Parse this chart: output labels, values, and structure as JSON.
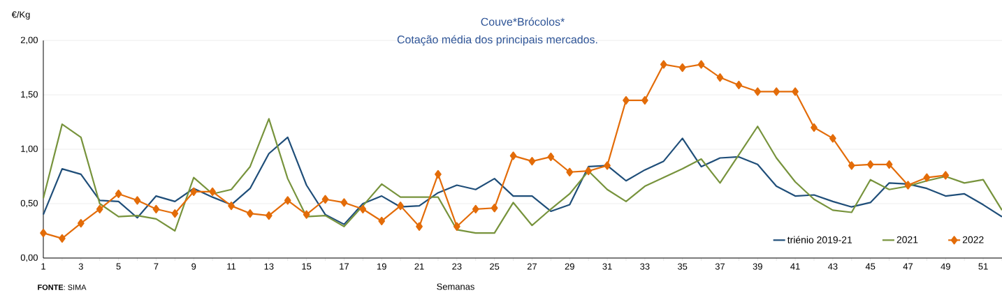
{
  "chart_data": {
    "type": "line",
    "title": "Couve*Brócolos*",
    "subtitle": "Cotação média dos principais mercados.",
    "xlabel": "Semanas",
    "ylabel": "€/Kg",
    "annotations": [
      "**FONTE**: SIMA"
    ],
    "x": [
      1,
      2,
      3,
      4,
      5,
      6,
      7,
      8,
      9,
      10,
      11,
      12,
      13,
      14,
      15,
      16,
      17,
      18,
      19,
      20,
      21,
      22,
      23,
      24,
      25,
      26,
      27,
      28,
      29,
      30,
      31,
      32,
      33,
      34,
      35,
      36,
      37,
      38,
      39,
      40,
      41,
      42,
      43,
      44,
      45,
      46,
      47,
      48,
      49,
      50,
      51,
      52
    ],
    "xlim": [
      1,
      52
    ],
    "xticks": [
      1,
      {
        "value": 2,
        "label": null
      },
      3,
      {
        "value": 4,
        "label": null
      },
      5,
      {
        "value": 6,
        "label": null
      },
      7,
      {
        "value": 8,
        "label": null
      },
      9,
      {
        "value": 10,
        "label": null
      },
      11,
      {
        "value": 12,
        "label": null
      },
      13,
      {
        "value": 14,
        "label": null
      },
      15,
      {
        "value": 16,
        "label": null
      },
      17,
      {
        "value": 18,
        "label": null
      },
      19,
      {
        "value": 20,
        "label": null
      },
      21,
      {
        "value": 22,
        "label": null
      },
      23,
      {
        "value": 24,
        "label": null
      },
      25,
      {
        "value": 26,
        "label": null
      },
      27,
      {
        "value": 28,
        "label": null
      },
      29,
      {
        "value": 30,
        "label": null
      },
      31,
      {
        "value": 32,
        "label": null
      },
      33,
      {
        "value": 34,
        "label": null
      },
      35,
      {
        "value": 36,
        "label": null
      },
      37,
      {
        "value": 38,
        "label": null
      },
      39,
      {
        "value": 40,
        "label": null
      },
      41,
      {
        "value": 42,
        "label": null
      },
      43,
      {
        "value": 44,
        "label": null
      },
      45,
      {
        "value": 46,
        "label": null
      },
      47,
      {
        "value": 48,
        "label": null
      },
      49,
      {
        "value": 50,
        "label": null
      },
      51,
      {
        "value": 52,
        "label": null
      }
    ],
    "ylim": [
      0,
      2
    ],
    "yticks": [
      {
        "value": 0,
        "label": "0,00"
      },
      {
        "value": 0.5,
        "label": "0,50"
      },
      {
        "value": 1,
        "label": "1,00"
      },
      {
        "value": 1.5,
        "label": "1,50"
      },
      {
        "value": 2,
        "label": "2,00"
      }
    ],
    "grid": "y",
    "legend": "bottom right",
    "line_style": "solid",
    "series": [
      {
        "name": "triénio 2019-21",
        "color": "#1f4e79",
        "marker": "none",
        "values": [
          0.4,
          0.82,
          0.77,
          0.53,
          0.52,
          0.37,
          0.57,
          0.52,
          0.64,
          0.56,
          0.49,
          0.64,
          0.96,
          1.11,
          0.67,
          0.4,
          0.31,
          0.5,
          0.57,
          0.47,
          0.48,
          0.6,
          0.67,
          0.63,
          0.73,
          0.57,
          0.57,
          0.43,
          0.49,
          0.84,
          0.85,
          0.71,
          0.81,
          0.89,
          1.1,
          0.84,
          0.92,
          0.93,
          0.86,
          0.66,
          0.57,
          0.58,
          0.52,
          0.47,
          0.51,
          0.69,
          0.68,
          0.64,
          0.57,
          0.59,
          0.49,
          0.38
        ]
      },
      {
        "name": "2021",
        "color": "#77933c",
        "marker": "none",
        "values": [
          0.55,
          1.23,
          1.11,
          0.5,
          0.38,
          0.39,
          0.36,
          0.25,
          0.74,
          0.59,
          0.63,
          0.84,
          1.28,
          0.73,
          0.38,
          0.39,
          0.29,
          0.48,
          0.68,
          0.56,
          0.56,
          0.56,
          0.26,
          0.23,
          0.23,
          0.51,
          0.3,
          0.45,
          0.59,
          0.8,
          0.63,
          0.52,
          0.66,
          0.74,
          0.82,
          0.91,
          0.69,
          0.95,
          1.21,
          0.92,
          0.7,
          0.54,
          0.44,
          0.42,
          0.72,
          0.63,
          0.66,
          0.71,
          0.75,
          0.69,
          0.72,
          0.44
        ]
      },
      {
        "name": "2022",
        "color": "#e36c09",
        "marker": "diamond",
        "values": [
          0.23,
          0.18,
          0.32,
          0.45,
          0.59,
          0.53,
          0.45,
          0.41,
          0.61,
          0.61,
          0.48,
          0.41,
          0.39,
          0.53,
          0.4,
          0.54,
          0.51,
          0.45,
          0.34,
          0.48,
          0.29,
          0.77,
          0.29,
          0.45,
          0.46,
          0.94,
          0.89,
          0.93,
          0.79,
          0.8,
          0.85,
          1.45,
          1.45,
          1.78,
          1.75,
          1.78,
          1.66,
          1.59,
          1.53,
          1.53,
          1.53,
          1.2,
          1.1,
          0.85,
          0.86,
          0.86,
          0.67,
          0.74,
          0.76,
          null,
          null,
          null
        ]
      }
    ]
  }
}
